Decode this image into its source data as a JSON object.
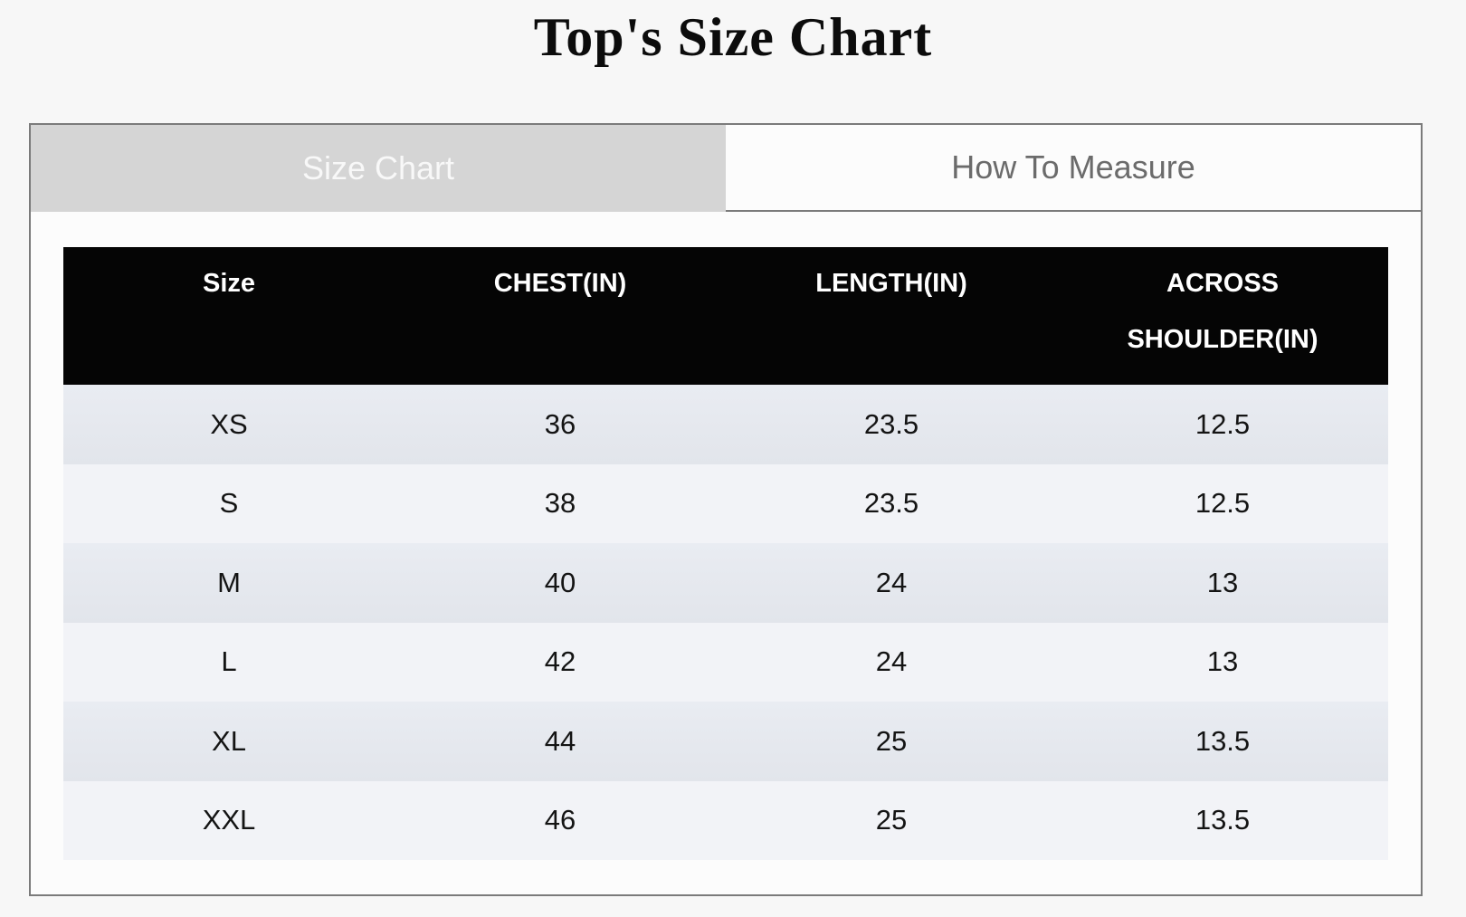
{
  "page": {
    "title": "Top's Size Chart"
  },
  "tabs": [
    {
      "label": "Size Chart",
      "active": true
    },
    {
      "label": "How To Measure",
      "active": false
    }
  ],
  "table": {
    "columns": [
      "Size",
      "CHEST(IN)",
      "LENGTH(IN)",
      "ACROSS SHOULDER(IN)"
    ],
    "rows": [
      [
        "XS",
        "36",
        "23.5",
        "12.5"
      ],
      [
        "S",
        "38",
        "23.5",
        "12.5"
      ],
      [
        "M",
        "40",
        "24",
        "13"
      ],
      [
        "L",
        "42",
        "24",
        "13"
      ],
      [
        "XL",
        "44",
        "25",
        "13.5"
      ],
      [
        "XXL",
        "46",
        "25",
        "13.5"
      ]
    ]
  },
  "colors": {
    "page_background": "#f7f7f7",
    "panel_background": "#fcfcfc",
    "panel_border": "#7b7b7b",
    "tab_active_background": "#d5d5d5",
    "tab_active_text": "#f8f8f8",
    "tab_inactive_text": "#6b6b6b",
    "header_background": "#050505",
    "header_text": "#ffffff",
    "row_stripe_dark": "#e5e8ee",
    "row_stripe_light": "#f2f3f7",
    "body_text": "#141414"
  }
}
